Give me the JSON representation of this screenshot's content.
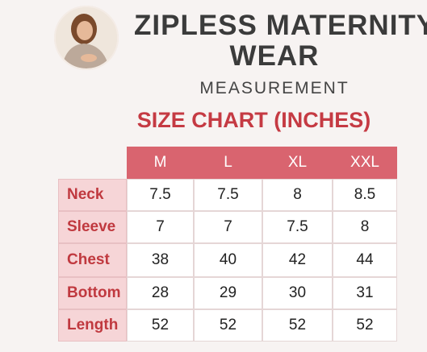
{
  "header": {
    "title_line1": "ZIPLESS MATERNITY",
    "title_line2": "WEAR",
    "subtitle": "MEASUREMENT",
    "chart_title": "SIZE CHART (INCHES)"
  },
  "table": {
    "columns": [
      "M",
      "L",
      "XL",
      "XXL"
    ],
    "rows": [
      {
        "label": "Neck",
        "values": [
          "7.5",
          "7.5",
          "8",
          "8.5"
        ]
      },
      {
        "label": "Sleeve",
        "values": [
          "7",
          "7",
          "7.5",
          "8"
        ]
      },
      {
        "label": "Chest",
        "values": [
          "38",
          "40",
          "42",
          "44"
        ]
      },
      {
        "label": "Bottom",
        "values": [
          "28",
          "29",
          "30",
          "31"
        ]
      },
      {
        "label": "Length",
        "values": [
          "52",
          "52",
          "52",
          "52"
        ]
      }
    ]
  }
}
